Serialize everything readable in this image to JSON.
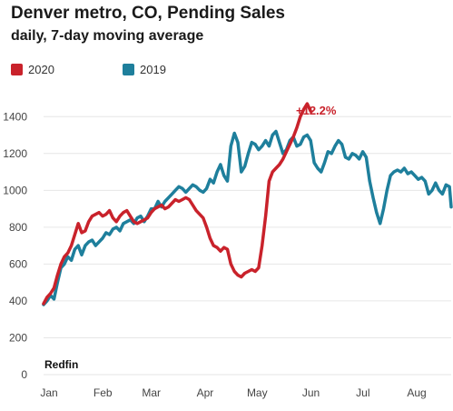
{
  "chart_data": {
    "type": "line",
    "title": "Denver metro, CO, Pending  Sales",
    "subtitle": "daily, 7-day moving average",
    "xlabel": "",
    "ylabel": "",
    "ylim": [
      0,
      1500
    ],
    "yticks": [
      0,
      200,
      400,
      600,
      800,
      1000,
      1200,
      1400
    ],
    "x_tick_labels": [
      "Jan",
      "Feb",
      "Mar",
      "Apr",
      "May",
      "Jun",
      "Jul",
      "Aug"
    ],
    "x_unit": "day of year",
    "xlim": [
      0,
      235
    ],
    "legend_position": "top-left",
    "grid": true,
    "source": "Redfin",
    "annotation": "+12.2%",
    "series": [
      {
        "name": "2020",
        "color": "#c9222b",
        "points": [
          [
            0,
            385
          ],
          [
            2,
            420
          ],
          [
            4,
            440
          ],
          [
            6,
            470
          ],
          [
            8,
            540
          ],
          [
            10,
            600
          ],
          [
            12,
            640
          ],
          [
            14,
            660
          ],
          [
            16,
            700
          ],
          [
            18,
            760
          ],
          [
            20,
            820
          ],
          [
            22,
            770
          ],
          [
            24,
            780
          ],
          [
            26,
            830
          ],
          [
            28,
            860
          ],
          [
            30,
            870
          ],
          [
            32,
            880
          ],
          [
            34,
            860
          ],
          [
            36,
            870
          ],
          [
            38,
            890
          ],
          [
            40,
            850
          ],
          [
            42,
            830
          ],
          [
            44,
            860
          ],
          [
            46,
            880
          ],
          [
            48,
            890
          ],
          [
            50,
            860
          ],
          [
            52,
            830
          ],
          [
            54,
            820
          ],
          [
            56,
            830
          ],
          [
            58,
            840
          ],
          [
            60,
            850
          ],
          [
            62,
            880
          ],
          [
            64,
            900
          ],
          [
            66,
            910
          ],
          [
            68,
            920
          ],
          [
            70,
            900
          ],
          [
            72,
            910
          ],
          [
            74,
            930
          ],
          [
            76,
            950
          ],
          [
            78,
            940
          ],
          [
            80,
            950
          ],
          [
            82,
            960
          ],
          [
            84,
            950
          ],
          [
            86,
            920
          ],
          [
            88,
            890
          ],
          [
            90,
            870
          ],
          [
            92,
            850
          ],
          [
            94,
            800
          ],
          [
            96,
            740
          ],
          [
            98,
            700
          ],
          [
            100,
            690
          ],
          [
            102,
            670
          ],
          [
            104,
            690
          ],
          [
            106,
            680
          ],
          [
            108,
            600
          ],
          [
            110,
            560
          ],
          [
            112,
            540
          ],
          [
            114,
            530
          ],
          [
            116,
            550
          ],
          [
            118,
            560
          ],
          [
            120,
            570
          ],
          [
            122,
            560
          ],
          [
            124,
            580
          ],
          [
            126,
            700
          ],
          [
            128,
            860
          ],
          [
            130,
            1050
          ],
          [
            132,
            1100
          ],
          [
            134,
            1120
          ],
          [
            136,
            1140
          ],
          [
            138,
            1170
          ],
          [
            140,
            1210
          ],
          [
            142,
            1250
          ],
          [
            144,
            1290
          ],
          [
            146,
            1340
          ],
          [
            148,
            1400
          ],
          [
            150,
            1440
          ],
          [
            152,
            1470
          ],
          [
            154,
            1430
          ]
        ]
      },
      {
        "name": "2019",
        "color": "#1e7f9c",
        "points": [
          [
            0,
            380
          ],
          [
            2,
            400
          ],
          [
            4,
            430
          ],
          [
            6,
            410
          ],
          [
            8,
            500
          ],
          [
            10,
            580
          ],
          [
            12,
            600
          ],
          [
            14,
            640
          ],
          [
            16,
            620
          ],
          [
            18,
            680
          ],
          [
            20,
            700
          ],
          [
            22,
            650
          ],
          [
            24,
            700
          ],
          [
            26,
            720
          ],
          [
            28,
            730
          ],
          [
            30,
            700
          ],
          [
            32,
            720
          ],
          [
            34,
            740
          ],
          [
            36,
            770
          ],
          [
            38,
            760
          ],
          [
            40,
            790
          ],
          [
            42,
            800
          ],
          [
            44,
            780
          ],
          [
            46,
            820
          ],
          [
            48,
            830
          ],
          [
            50,
            840
          ],
          [
            52,
            820
          ],
          [
            54,
            850
          ],
          [
            56,
            860
          ],
          [
            58,
            830
          ],
          [
            60,
            860
          ],
          [
            62,
            900
          ],
          [
            64,
            900
          ],
          [
            66,
            940
          ],
          [
            68,
            910
          ],
          [
            70,
            940
          ],
          [
            72,
            960
          ],
          [
            74,
            980
          ],
          [
            76,
            1000
          ],
          [
            78,
            1020
          ],
          [
            80,
            1010
          ],
          [
            82,
            990
          ],
          [
            84,
            1010
          ],
          [
            86,
            1030
          ],
          [
            88,
            1020
          ],
          [
            90,
            1000
          ],
          [
            92,
            990
          ],
          [
            94,
            1010
          ],
          [
            96,
            1060
          ],
          [
            98,
            1040
          ],
          [
            100,
            1100
          ],
          [
            102,
            1140
          ],
          [
            104,
            1080
          ],
          [
            106,
            1050
          ],
          [
            108,
            1240
          ],
          [
            110,
            1310
          ],
          [
            112,
            1260
          ],
          [
            114,
            1100
          ],
          [
            116,
            1130
          ],
          [
            118,
            1200
          ],
          [
            120,
            1260
          ],
          [
            122,
            1250
          ],
          [
            124,
            1220
          ],
          [
            126,
            1240
          ],
          [
            128,
            1270
          ],
          [
            130,
            1240
          ],
          [
            132,
            1300
          ],
          [
            134,
            1320
          ],
          [
            136,
            1260
          ],
          [
            138,
            1200
          ],
          [
            140,
            1220
          ],
          [
            142,
            1270
          ],
          [
            144,
            1290
          ],
          [
            146,
            1240
          ],
          [
            148,
            1250
          ],
          [
            150,
            1290
          ],
          [
            152,
            1300
          ],
          [
            154,
            1270
          ],
          [
            156,
            1150
          ],
          [
            158,
            1120
          ],
          [
            160,
            1100
          ],
          [
            162,
            1150
          ],
          [
            164,
            1210
          ],
          [
            166,
            1200
          ],
          [
            168,
            1240
          ],
          [
            170,
            1270
          ],
          [
            172,
            1250
          ],
          [
            174,
            1180
          ],
          [
            176,
            1170
          ],
          [
            178,
            1200
          ],
          [
            180,
            1190
          ],
          [
            182,
            1170
          ],
          [
            184,
            1210
          ],
          [
            186,
            1180
          ],
          [
            188,
            1050
          ],
          [
            190,
            960
          ],
          [
            192,
            880
          ],
          [
            194,
            820
          ],
          [
            196,
            900
          ],
          [
            198,
            1000
          ],
          [
            200,
            1080
          ],
          [
            202,
            1100
          ],
          [
            204,
            1110
          ],
          [
            206,
            1100
          ],
          [
            208,
            1120
          ],
          [
            210,
            1090
          ],
          [
            212,
            1100
          ],
          [
            214,
            1080
          ],
          [
            216,
            1060
          ],
          [
            218,
            1070
          ],
          [
            220,
            1050
          ],
          [
            222,
            980
          ],
          [
            224,
            1000
          ],
          [
            226,
            1040
          ],
          [
            228,
            1000
          ],
          [
            230,
            980
          ],
          [
            232,
            1030
          ],
          [
            234,
            1020
          ],
          [
            235,
            910
          ]
        ]
      }
    ]
  }
}
